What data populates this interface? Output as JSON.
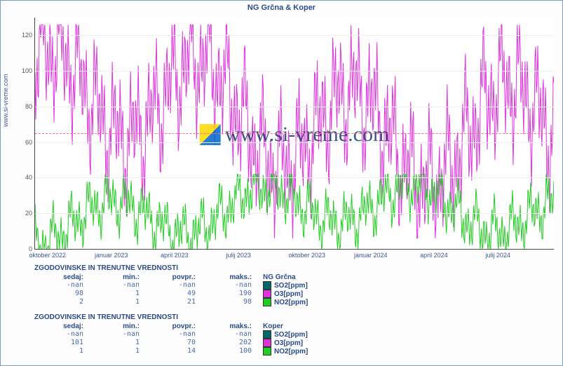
{
  "title": "NG Grčna & Koper",
  "ylabel_rotated": "www.si-vreme.com",
  "watermark_text": "www.si-vreme.com",
  "chart": {
    "type": "line",
    "background_color": "#ffffff",
    "border_color": "#7a9ac4",
    "grid_color": "#eeeeee",
    "reference_line_color": "#ff6b8a",
    "reference_line_value": 65,
    "ylim": [
      0,
      130
    ],
    "ytick_step": 20,
    "yticks": [
      0,
      20,
      40,
      60,
      80,
      100,
      120
    ],
    "xticks": [
      "oktober 2022",
      "januar 2023",
      "april 2023",
      "julij 2023",
      "oktober 2023",
      "januar 2024",
      "april 2024",
      "julij 2024"
    ],
    "series": [
      {
        "name": "O3",
        "color": "#dd33dd",
        "amplitude_min": 30,
        "amplitude_max": 120,
        "line_width": 1
      },
      {
        "name": "NO2",
        "color": "#22cc22",
        "amplitude_min": 0,
        "amplitude_max": 40,
        "line_width": 1
      }
    ],
    "title_fontsize": 11,
    "label_fontsize": 9
  },
  "tables": [
    {
      "title": "ZGODOVINSKE IN TRENUTNE VREDNOSTI",
      "headers": [
        "sedaj:",
        "min.:",
        "povpr.:",
        "maks.:"
      ],
      "location": "NG Grčna",
      "rows": [
        {
          "values": [
            "-nan",
            "-nan",
            "-nan",
            "-nan"
          ],
          "swatch": "#006666",
          "label": "SO2[ppm]"
        },
        {
          "values": [
            "98",
            "1",
            "49",
            "190"
          ],
          "swatch": "#dd33dd",
          "label": "O3[ppm]"
        },
        {
          "values": [
            "2",
            "1",
            "21",
            "98"
          ],
          "swatch": "#22cc22",
          "label": "NO2[ppm]"
        }
      ]
    },
    {
      "title": "ZGODOVINSKE IN TRENUTNE VREDNOSTI",
      "headers": [
        "sedaj:",
        "min.:",
        "povpr.:",
        "maks.:"
      ],
      "location": "Koper",
      "rows": [
        {
          "values": [
            "-nan",
            "-nan",
            "-nan",
            "-nan"
          ],
          "swatch": "#006666",
          "label": "SO2[ppm]"
        },
        {
          "values": [
            "101",
            "1",
            "70",
            "202"
          ],
          "swatch": "#dd33dd",
          "label": "O3[ppm]"
        },
        {
          "values": [
            "1",
            "1",
            "14",
            "100"
          ],
          "swatch": "#22cc22",
          "label": "NO2[ppm]"
        }
      ]
    }
  ]
}
